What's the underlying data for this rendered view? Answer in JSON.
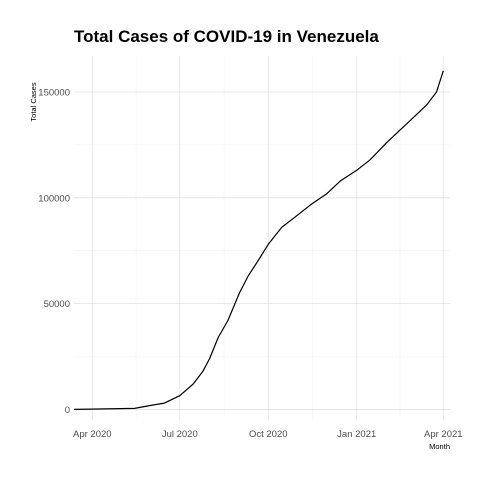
{
  "chart_data": {
    "type": "line",
    "title": "Total Cases of COVID-19 in Venezuela",
    "xlabel": "Month",
    "ylabel": "Total Cases",
    "x_ticks": [
      "Apr 2020",
      "Jul 2020",
      "Oct 2020",
      "Jan 2021",
      "Apr 2021"
    ],
    "x_tick_dates": [
      "2020-04-01",
      "2020-07-01",
      "2020-10-01",
      "2021-01-01",
      "2021-04-01"
    ],
    "y_ticks": [
      0,
      50000,
      100000,
      150000
    ],
    "xlim": [
      "2020-03-13",
      "2021-04-08"
    ],
    "ylim": [
      -5000,
      167000
    ],
    "grid": true,
    "legend": "none",
    "colors": {
      "line": "#000000",
      "grid_major": "#e2e2e2",
      "grid_minor": "#f2f2f2",
      "tick_text": "#4d4d4d"
    },
    "series": [
      {
        "x": [
          "2020-03-13",
          "2020-04-01",
          "2020-04-15",
          "2020-05-01",
          "2020-05-15",
          "2020-06-01",
          "2020-06-15",
          "2020-07-01",
          "2020-07-15",
          "2020-07-25",
          "2020-08-01",
          "2020-08-10",
          "2020-08-20",
          "2020-09-01",
          "2020-09-10",
          "2020-09-20",
          "2020-10-01",
          "2020-10-15",
          "2020-11-01",
          "2020-11-15",
          "2020-12-01",
          "2020-12-15",
          "2021-01-01",
          "2021-01-15",
          "2021-02-01",
          "2021-02-15",
          "2021-03-01",
          "2021-03-15",
          "2021-03-25",
          "2021-04-01"
        ],
        "y": [
          30,
          150,
          250,
          400,
          500,
          1900,
          3000,
          6500,
          12000,
          18000,
          24000,
          34000,
          42000,
          55000,
          63000,
          70000,
          78000,
          86000,
          92000,
          97000,
          102000,
          108000,
          113000,
          118000,
          126000,
          132000,
          138000,
          144000,
          150000,
          160000
        ]
      }
    ]
  }
}
